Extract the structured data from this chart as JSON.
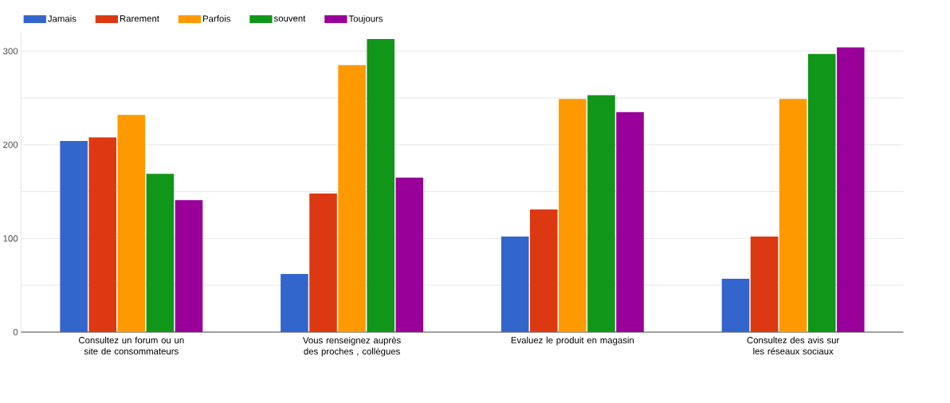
{
  "chart_data": {
    "type": "bar",
    "categories": [
      "Consultez un forum ou un site de consommateurs",
      "Vous renseignez auprès des proches , collègues",
      "Evaluez le produit en magasin",
      "Consultez des avis sur les réseaux sociaux"
    ],
    "series": [
      {
        "name": "Jamais",
        "color": "#3366cc",
        "values": [
          204,
          62,
          102,
          57
        ]
      },
      {
        "name": "Rarement",
        "color": "#dc3912",
        "values": [
          208,
          148,
          131,
          102
        ]
      },
      {
        "name": "Parfois",
        "color": "#ff9900",
        "values": [
          232,
          285,
          249,
          249
        ]
      },
      {
        "name": "souvent",
        "color": "#109618",
        "values": [
          169,
          313,
          253,
          297
        ]
      },
      {
        "name": "Toujours",
        "color": "#990099",
        "values": [
          141,
          165,
          235,
          304
        ]
      }
    ],
    "ylim": [
      0,
      320
    ],
    "yticks": [
      0,
      {
        "value": 50,
        "label": null
      },
      100,
      {
        "value": 150,
        "label": null
      },
      200,
      {
        "value": 250,
        "label": null
      },
      300
    ],
    "grid": "y",
    "legend": "top"
  }
}
